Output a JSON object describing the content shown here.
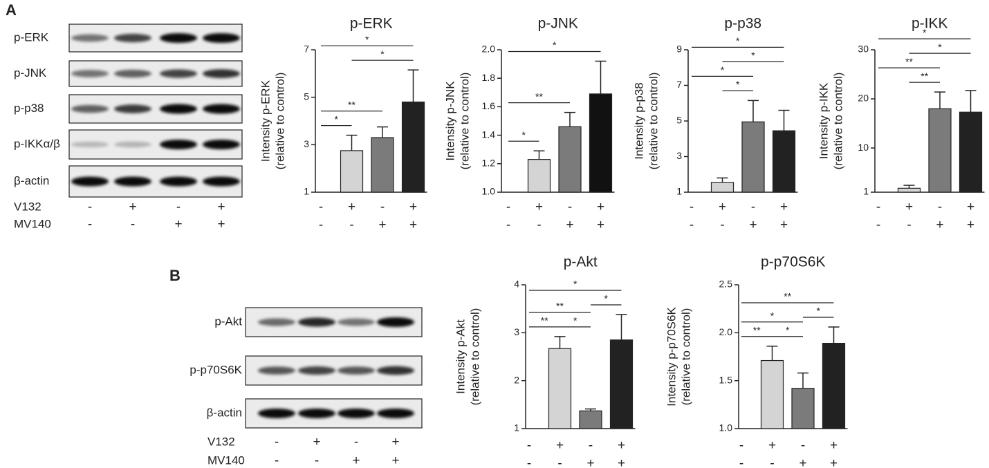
{
  "panels": [
    {
      "letter": "A",
      "blot_rows": [
        "p-ERK",
        "p-JNK",
        "p-p38",
        "p-IKKα/β",
        "β-actin"
      ],
      "treatments": [
        {
          "name": "V132",
          "signs": [
            "-",
            "+",
            "-",
            "+"
          ]
        },
        {
          "name": "MV140",
          "signs": [
            "-",
            "-",
            "+",
            "+"
          ]
        }
      ]
    },
    {
      "letter": "B",
      "blot_rows": [
        "p-Akt",
        "p-p70S6K",
        "β-actin"
      ],
      "treatments": [
        {
          "name": "V132",
          "signs": [
            "-",
            "+",
            "-",
            "+"
          ]
        },
        {
          "name": "MV140",
          "signs": [
            "-",
            "-",
            "+",
            "+"
          ]
        }
      ]
    }
  ],
  "chart_data": [
    {
      "type": "bar",
      "title": "p-ERK",
      "y_label": [
        "Intensity p-ERK",
        "(relative to control)"
      ],
      "x_labels": [
        [
          "-",
          "+",
          "-",
          "+"
        ],
        [
          "-",
          "-",
          "+",
          "+"
        ]
      ],
      "values": [
        1,
        2.75,
        3.3,
        4.8
      ],
      "errors": [
        null,
        0.65,
        0.45,
        1.35
      ],
      "colors": [
        "#ffffff",
        "#d4d4d4",
        "#7b7b7b",
        "#222222"
      ],
      "ylim": [
        1,
        7
      ],
      "yticks": [
        1,
        3,
        5,
        7
      ],
      "brackets": [
        {
          "pair": [
            0,
            1
          ],
          "label": "*"
        },
        {
          "pair": [
            0,
            2
          ],
          "label": "**"
        },
        {
          "pair": [
            1,
            3
          ],
          "label": "*"
        },
        {
          "pair": [
            0,
            3
          ],
          "label": "*"
        }
      ]
    },
    {
      "type": "bar",
      "title": "p-JNK",
      "y_label": [
        "Intensity p-JNK",
        "(relative to control)"
      ],
      "x_labels": [
        [
          "-",
          "+",
          "-",
          "+"
        ],
        [
          "-",
          "-",
          "+",
          "+"
        ]
      ],
      "values": [
        1,
        1.23,
        1.46,
        1.69
      ],
      "errors": [
        null,
        0.06,
        0.1,
        0.23
      ],
      "colors": [
        "#ffffff",
        "#d4d4d4",
        "#7b7b7b",
        "#111111"
      ],
      "ylim": [
        1,
        2
      ],
      "yticks": [
        {
          "value": 1,
          "label": "1.0"
        },
        1.2,
        1.4,
        1.6,
        1.8,
        {
          "value": 2,
          "label": "2.0"
        }
      ],
      "brackets": [
        {
          "pair": [
            0,
            1
          ],
          "label": "*"
        },
        {
          "pair": [
            0,
            2
          ],
          "label": "**"
        },
        {
          "pair": [
            0,
            3
          ],
          "label": "*"
        }
      ]
    },
    {
      "type": "bar",
      "title": "p-p38",
      "y_label": [
        "Intensity p-p38",
        "(relative to control)"
      ],
      "x_labels": [
        [
          "-",
          "+",
          "-",
          "+"
        ],
        [
          "-",
          "-",
          "+",
          "+"
        ]
      ],
      "values": [
        1,
        1.55,
        4.95,
        4.45
      ],
      "errors": [
        null,
        0.25,
        1.2,
        1.15
      ],
      "colors": [
        "#ffffff",
        "#d4d4d4",
        "#7b7b7b",
        "#222222"
      ],
      "ylim": [
        1,
        9
      ],
      "yticks": [
        1,
        3,
        5,
        7,
        9
      ],
      "brackets": [
        {
          "pair": [
            1,
            2
          ],
          "label": "*"
        },
        {
          "pair": [
            0,
            2
          ],
          "label": "*"
        },
        {
          "pair": [
            1,
            3
          ],
          "label": "*"
        },
        {
          "pair": [
            0,
            3
          ],
          "label": "*"
        }
      ]
    },
    {
      "type": "bar",
      "title": "p-IKK",
      "y_label": [
        "Intensity p-IKK",
        "(relative to control)"
      ],
      "x_labels": [
        [
          "-",
          "+",
          "-",
          "+"
        ],
        [
          "-",
          "-",
          "+",
          "+"
        ]
      ],
      "values": [
        1,
        1.8,
        18,
        17.3
      ],
      "errors": [
        null,
        0.6,
        3.4,
        4.4
      ],
      "colors": [
        "#ffffff",
        "#d4d4d4",
        "#7b7b7b",
        "#222222"
      ],
      "ylim": [
        1,
        30
      ],
      "yticks": [
        1,
        10,
        20,
        30
      ],
      "brackets": [
        {
          "pair": [
            1,
            2
          ],
          "label": "**"
        },
        {
          "pair": [
            0,
            2
          ],
          "label": "**"
        },
        {
          "pair": [
            1,
            3
          ],
          "label": "*"
        },
        {
          "pair": [
            0,
            3
          ],
          "label": "*"
        }
      ]
    },
    {
      "type": "bar",
      "title": "p-Akt",
      "y_label": [
        "Intensity p-Akt",
        "(relative to control)"
      ],
      "x_labels": [
        [
          "-",
          "+",
          "-",
          "+"
        ],
        [
          "-",
          "-",
          "+",
          "+"
        ]
      ],
      "values": [
        1,
        2.67,
        1.37,
        2.85
      ],
      "errors": [
        null,
        0.25,
        0.04,
        0.53
      ],
      "colors": [
        "#ffffff",
        "#d4d4d4",
        "#7b7b7b",
        "#222222"
      ],
      "ylim": [
        1,
        4
      ],
      "yticks": [
        1,
        2,
        3,
        4
      ],
      "brackets": [
        {
          "pair": [
            0,
            1
          ],
          "label": "**"
        },
        {
          "pair": [
            1,
            2
          ],
          "label": "*"
        },
        {
          "pair": [
            2,
            3
          ],
          "label": "*"
        },
        {
          "pair": [
            0,
            2
          ],
          "label": "**"
        },
        {
          "pair": [
            0,
            3
          ],
          "label": "*"
        }
      ]
    },
    {
      "type": "bar",
      "title": "p-p70S6K",
      "y_label": [
        "Intensity p-p70S6K",
        "(relative to control)"
      ],
      "x_labels": [
        [
          "-",
          "+",
          "-",
          "+"
        ],
        [
          "-",
          "-",
          "+",
          "+"
        ]
      ],
      "values": [
        1,
        1.71,
        1.42,
        1.89
      ],
      "errors": [
        null,
        0.15,
        0.16,
        0.17
      ],
      "colors": [
        "#ffffff",
        "#d4d4d4",
        "#7b7b7b",
        "#222222"
      ],
      "ylim": [
        1,
        2.5
      ],
      "yticks": [
        {
          "value": 1,
          "label": "1.0"
        },
        1.5,
        {
          "value": 2,
          "label": "2.0"
        },
        2.5
      ],
      "brackets": [
        {
          "pair": [
            0,
            1
          ],
          "label": "**"
        },
        {
          "pair": [
            1,
            2
          ],
          "label": "*"
        },
        {
          "pair": [
            2,
            3
          ],
          "label": "*"
        },
        {
          "pair": [
            0,
            2
          ],
          "label": "*"
        },
        {
          "pair": [
            0,
            3
          ],
          "label": "**"
        }
      ]
    }
  ]
}
